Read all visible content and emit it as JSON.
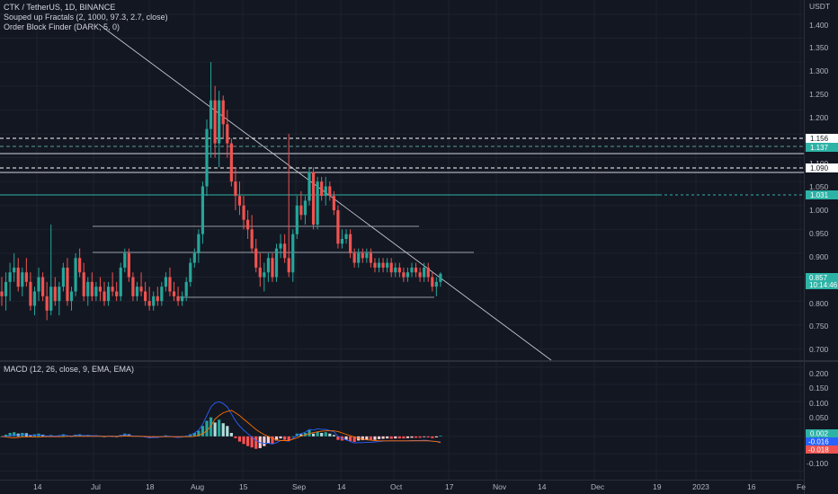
{
  "legends": {
    "symbol": "CTK / TetherUS, 1D, BINANCE",
    "fractals": "Souped up Fractals (2, 1000, 97.3, 2.7, close)",
    "order_block": "Order Block Finder (DARK, 5, 0)",
    "macd": "MACD (12, 26, close, 9, EMA, EMA)"
  },
  "price_axis": {
    "unit": "USDT",
    "ticks": [
      "1.400",
      "1.350",
      "1.300",
      "1.250",
      "1.200",
      "1.150",
      "1.100",
      "1.050",
      "1.000",
      "0.950",
      "0.900",
      "0.850",
      "0.800",
      "0.750",
      "0.700"
    ]
  },
  "macd_axis": {
    "ticks": [
      "0.200",
      "0.150",
      "0.100",
      "0.050",
      "0.000",
      "-0.050",
      "-0.100"
    ]
  },
  "x_axis": {
    "labels": [
      "14",
      "Jul",
      "18",
      "Aug",
      "15",
      "Sep",
      "14",
      "Oct",
      "17",
      "Nov",
      "14",
      "Dec",
      "19",
      "2023",
      "16",
      "Fe"
    ]
  },
  "price_tags": {
    "t1156": "1.156",
    "t1137": "1.137",
    "t1090": "1.090",
    "t1031": "1.031",
    "current": "0.857",
    "countdown": "10:14:46"
  },
  "macd_tags": {
    "hist": "0.002",
    "macd": "-0.016",
    "signal": "-0.018"
  },
  "colors": {
    "background": "#131722",
    "up": "#26a69a",
    "down": "#ef5350",
    "macd_line": "#2962ff",
    "signal_line": "#ff6d00",
    "tag_teal": "#2db3a6",
    "grid": "#1e222d"
  },
  "chart_data": {
    "type": "candlestick",
    "symbol": "CTK / TetherUS",
    "interval": "1D",
    "exchange": "BINANCE",
    "ylim": [
      0.68,
      1.43
    ],
    "ohlc": [
      [
        0.82,
        0.85,
        0.79,
        0.81
      ],
      [
        0.81,
        0.86,
        0.78,
        0.84
      ],
      [
        0.84,
        0.88,
        0.8,
        0.86
      ],
      [
        0.86,
        0.9,
        0.84,
        0.87
      ],
      [
        0.87,
        0.89,
        0.82,
        0.83
      ],
      [
        0.83,
        0.87,
        0.81,
        0.86
      ],
      [
        0.86,
        0.89,
        0.83,
        0.84
      ],
      [
        0.84,
        0.86,
        0.78,
        0.79
      ],
      [
        0.79,
        0.83,
        0.77,
        0.82
      ],
      [
        0.82,
        0.87,
        0.8,
        0.85
      ],
      [
        0.85,
        0.86,
        0.8,
        0.81
      ],
      [
        0.81,
        0.84,
        0.76,
        0.78
      ],
      [
        0.78,
        0.96,
        0.77,
        0.83
      ],
      [
        0.83,
        0.85,
        0.79,
        0.8
      ],
      [
        0.8,
        0.84,
        0.77,
        0.83
      ],
      [
        0.83,
        0.88,
        0.82,
        0.87
      ],
      [
        0.87,
        0.89,
        0.79,
        0.8
      ],
      [
        0.8,
        0.83,
        0.78,
        0.82
      ],
      [
        0.82,
        0.9,
        0.81,
        0.89
      ],
      [
        0.89,
        0.91,
        0.85,
        0.86
      ],
      [
        0.86,
        0.88,
        0.8,
        0.81
      ],
      [
        0.81,
        0.85,
        0.79,
        0.84
      ],
      [
        0.84,
        0.86,
        0.8,
        0.81
      ],
      [
        0.81,
        0.84,
        0.8,
        0.83
      ],
      [
        0.83,
        0.85,
        0.8,
        0.82
      ],
      [
        0.82,
        0.84,
        0.79,
        0.8
      ],
      [
        0.8,
        0.84,
        0.79,
        0.83
      ],
      [
        0.83,
        0.86,
        0.81,
        0.82
      ],
      [
        0.82,
        0.84,
        0.8,
        0.81
      ],
      [
        0.81,
        0.88,
        0.8,
        0.87
      ],
      [
        0.87,
        0.91,
        0.86,
        0.9
      ],
      [
        0.9,
        0.91,
        0.84,
        0.85
      ],
      [
        0.85,
        0.86,
        0.8,
        0.81
      ],
      [
        0.81,
        0.84,
        0.8,
        0.83
      ],
      [
        0.83,
        0.86,
        0.81,
        0.82
      ],
      [
        0.82,
        0.84,
        0.79,
        0.8
      ],
      [
        0.8,
        0.83,
        0.78,
        0.79
      ],
      [
        0.79,
        0.82,
        0.78,
        0.81
      ],
      [
        0.81,
        0.83,
        0.79,
        0.8
      ],
      [
        0.8,
        0.84,
        0.79,
        0.83
      ],
      [
        0.83,
        0.86,
        0.82,
        0.85
      ],
      [
        0.85,
        0.87,
        0.81,
        0.82
      ],
      [
        0.82,
        0.84,
        0.8,
        0.81
      ],
      [
        0.81,
        0.83,
        0.79,
        0.8
      ],
      [
        0.8,
        0.82,
        0.79,
        0.81
      ],
      [
        0.81,
        0.85,
        0.8,
        0.84
      ],
      [
        0.84,
        0.89,
        0.83,
        0.88
      ],
      [
        0.88,
        0.91,
        0.87,
        0.9
      ],
      [
        0.9,
        0.95,
        0.88,
        0.94
      ],
      [
        0.94,
        1.05,
        0.92,
        1.04
      ],
      [
        1.04,
        1.18,
        1.02,
        1.16
      ],
      [
        1.16,
        1.3,
        1.1,
        1.22
      ],
      [
        1.22,
        1.25,
        1.1,
        1.13
      ],
      [
        1.13,
        1.24,
        1.08,
        1.22
      ],
      [
        1.22,
        1.23,
        1.14,
        1.17
      ],
      [
        1.17,
        1.2,
        1.1,
        1.13
      ],
      [
        1.13,
        1.14,
        1.04,
        1.05
      ],
      [
        1.05,
        1.08,
        0.99,
        1.02
      ],
      [
        1.02,
        1.05,
        0.98,
        1.0
      ],
      [
        1.0,
        1.02,
        0.95,
        0.97
      ],
      [
        0.97,
        0.99,
        0.93,
        0.95
      ],
      [
        0.95,
        0.98,
        0.9,
        0.91
      ],
      [
        0.91,
        0.93,
        0.86,
        0.87
      ],
      [
        0.87,
        0.9,
        0.83,
        0.85
      ],
      [
        0.85,
        0.88,
        0.82,
        0.86
      ],
      [
        0.86,
        0.9,
        0.84,
        0.89
      ],
      [
        0.89,
        0.9,
        0.84,
        0.85
      ],
      [
        0.85,
        0.92,
        0.84,
        0.91
      ],
      [
        0.91,
        0.94,
        0.89,
        0.92
      ],
      [
        0.92,
        0.94,
        0.88,
        0.89
      ],
      [
        0.89,
        1.15,
        0.85,
        0.86
      ],
      [
        0.86,
        0.95,
        0.84,
        0.94
      ],
      [
        0.94,
        1.02,
        0.93,
        1.0
      ],
      [
        1.0,
        1.03,
        0.97,
        0.98
      ],
      [
        0.98,
        1.02,
        0.96,
        1.01
      ],
      [
        1.01,
        1.08,
        1.0,
        1.07
      ],
      [
        1.07,
        1.08,
        0.95,
        0.96
      ],
      [
        0.96,
        1.06,
        0.95,
        1.05
      ],
      [
        1.05,
        1.06,
        1.01,
        1.02
      ],
      [
        1.02,
        1.06,
        1.0,
        1.04
      ],
      [
        1.04,
        1.05,
        1.01,
        1.02
      ],
      [
        1.02,
        1.03,
        0.98,
        0.99
      ],
      [
        0.99,
        1.0,
        0.91,
        0.92
      ],
      [
        0.92,
        0.95,
        0.91,
        0.93
      ],
      [
        0.93,
        0.95,
        0.92,
        0.94
      ],
      [
        0.94,
        0.95,
        0.89,
        0.9
      ],
      [
        0.9,
        0.91,
        0.87,
        0.88
      ],
      [
        0.88,
        0.91,
        0.87,
        0.9
      ],
      [
        0.9,
        0.91,
        0.88,
        0.89
      ],
      [
        0.89,
        0.91,
        0.88,
        0.9
      ],
      [
        0.9,
        0.91,
        0.87,
        0.88
      ],
      [
        0.88,
        0.89,
        0.86,
        0.87
      ],
      [
        0.87,
        0.89,
        0.86,
        0.88
      ],
      [
        0.88,
        0.89,
        0.86,
        0.87
      ],
      [
        0.87,
        0.89,
        0.86,
        0.88
      ],
      [
        0.88,
        0.89,
        0.85,
        0.86
      ],
      [
        0.86,
        0.88,
        0.85,
        0.87
      ],
      [
        0.87,
        0.88,
        0.85,
        0.86
      ],
      [
        0.86,
        0.87,
        0.84,
        0.85
      ],
      [
        0.85,
        0.87,
        0.84,
        0.86
      ],
      [
        0.86,
        0.88,
        0.85,
        0.87
      ],
      [
        0.87,
        0.88,
        0.85,
        0.86
      ],
      [
        0.86,
        0.87,
        0.84,
        0.85
      ],
      [
        0.85,
        0.88,
        0.84,
        0.87
      ],
      [
        0.87,
        0.88,
        0.84,
        0.85
      ],
      [
        0.85,
        0.86,
        0.82,
        0.83
      ],
      [
        0.83,
        0.85,
        0.81,
        0.84
      ],
      [
        0.84,
        0.86,
        0.83,
        0.857
      ]
    ],
    "levels": [
      1.156,
      1.137,
      1.09,
      1.031
    ],
    "macd": {
      "ylim": [
        -0.125,
        0.215
      ],
      "histogram": [
        0.0,
        0.005,
        0.01,
        0.012,
        0.008,
        0.01,
        0.009,
        0.004,
        0.006,
        0.008,
        0.005,
        0.002,
        0.004,
        0.002,
        0.003,
        0.006,
        0.002,
        0.001,
        0.005,
        0.006,
        0.003,
        0.004,
        0.002,
        0.003,
        0.002,
        0.0,
        0.002,
        0.001,
        0.0,
        0.004,
        0.008,
        0.006,
        0.002,
        0.002,
        0.001,
        -0.002,
        -0.004,
        -0.002,
        -0.003,
        0.0,
        0.003,
        0.001,
        -0.001,
        -0.002,
        -0.001,
        0.002,
        0.006,
        0.01,
        0.016,
        0.03,
        0.045,
        0.055,
        0.04,
        0.048,
        0.038,
        0.03,
        0.01,
        -0.005,
        -0.015,
        -0.022,
        -0.028,
        -0.032,
        -0.036,
        -0.034,
        -0.028,
        -0.02,
        -0.022,
        -0.012,
        -0.006,
        -0.01,
        -0.012,
        0.0,
        0.008,
        0.006,
        0.01,
        0.018,
        0.008,
        0.014,
        0.01,
        0.012,
        0.008,
        0.004,
        -0.01,
        -0.012,
        -0.01,
        -0.014,
        -0.016,
        -0.012,
        -0.011,
        -0.01,
        -0.011,
        -0.01,
        -0.008,
        -0.007,
        -0.006,
        -0.007,
        -0.006,
        -0.006,
        -0.006,
        -0.005,
        -0.004,
        -0.004,
        -0.004,
        -0.002,
        -0.003,
        -0.005,
        -0.003,
        0.002
      ],
      "macd_line": [
        0.0,
        0.0,
        0.002,
        0.004,
        0.004,
        0.005,
        0.005,
        0.003,
        0.003,
        0.004,
        0.003,
        0.001,
        0.002,
        0.001,
        0.002,
        0.004,
        0.002,
        0.001,
        0.003,
        0.004,
        0.002,
        0.003,
        0.002,
        0.002,
        0.001,
        0.0,
        0.001,
        0.001,
        0.0,
        0.002,
        0.005,
        0.004,
        0.001,
        0.001,
        0.0,
        -0.002,
        -0.004,
        -0.003,
        -0.003,
        -0.001,
        0.001,
        0.0,
        -0.002,
        -0.003,
        -0.002,
        0.0,
        0.004,
        0.01,
        0.018,
        0.035,
        0.06,
        0.085,
        0.097,
        0.1,
        0.095,
        0.085,
        0.065,
        0.045,
        0.03,
        0.018,
        0.008,
        -0.002,
        -0.012,
        -0.018,
        -0.02,
        -0.02,
        -0.022,
        -0.018,
        -0.012,
        -0.012,
        -0.014,
        -0.006,
        0.004,
        0.008,
        0.012,
        0.02,
        0.018,
        0.022,
        0.02,
        0.02,
        0.017,
        0.013,
        0.0,
        -0.006,
        -0.01,
        -0.015,
        -0.019,
        -0.018,
        -0.018,
        -0.017,
        -0.017,
        -0.016,
        -0.015,
        -0.014,
        -0.013,
        -0.013,
        -0.013,
        -0.013,
        -0.013,
        -0.013,
        -0.012,
        -0.012,
        -0.012,
        -0.011,
        -0.012,
        -0.014,
        -0.015,
        -0.016
      ],
      "signal_line": [
        0.0,
        -0.002,
        -0.003,
        -0.004,
        -0.003,
        -0.002,
        -0.002,
        -0.001,
        -0.002,
        -0.002,
        -0.001,
        -0.001,
        -0.001,
        -0.001,
        -0.001,
        -0.001,
        0.0,
        0.0,
        0.0,
        0.0,
        0.0,
        0.0,
        0.0,
        0.0,
        0.0,
        0.0,
        0.0,
        0.0,
        0.0,
        0.0,
        0.001,
        0.001,
        0.0,
        0.0,
        0.0,
        0.0,
        -0.001,
        -0.001,
        -0.001,
        -0.001,
        -0.001,
        -0.001,
        -0.001,
        -0.001,
        -0.001,
        -0.001,
        -0.001,
        0.0,
        0.003,
        0.008,
        0.016,
        0.03,
        0.05,
        0.06,
        0.068,
        0.072,
        0.075,
        0.068,
        0.06,
        0.05,
        0.04,
        0.03,
        0.02,
        0.012,
        0.005,
        0.0,
        -0.006,
        -0.01,
        -0.012,
        -0.012,
        -0.012,
        -0.008,
        -0.004,
        0.001,
        0.004,
        0.008,
        0.011,
        0.013,
        0.015,
        0.016,
        0.016,
        0.016,
        0.014,
        0.01,
        0.006,
        0.002,
        -0.002,
        -0.005,
        -0.008,
        -0.01,
        -0.011,
        -0.012,
        -0.013,
        -0.013,
        -0.013,
        -0.013,
        -0.013,
        -0.013,
        -0.013,
        -0.013,
        -0.013,
        -0.013,
        -0.013,
        -0.013,
        -0.013,
        -0.014,
        -0.015,
        -0.018
      ]
    }
  }
}
